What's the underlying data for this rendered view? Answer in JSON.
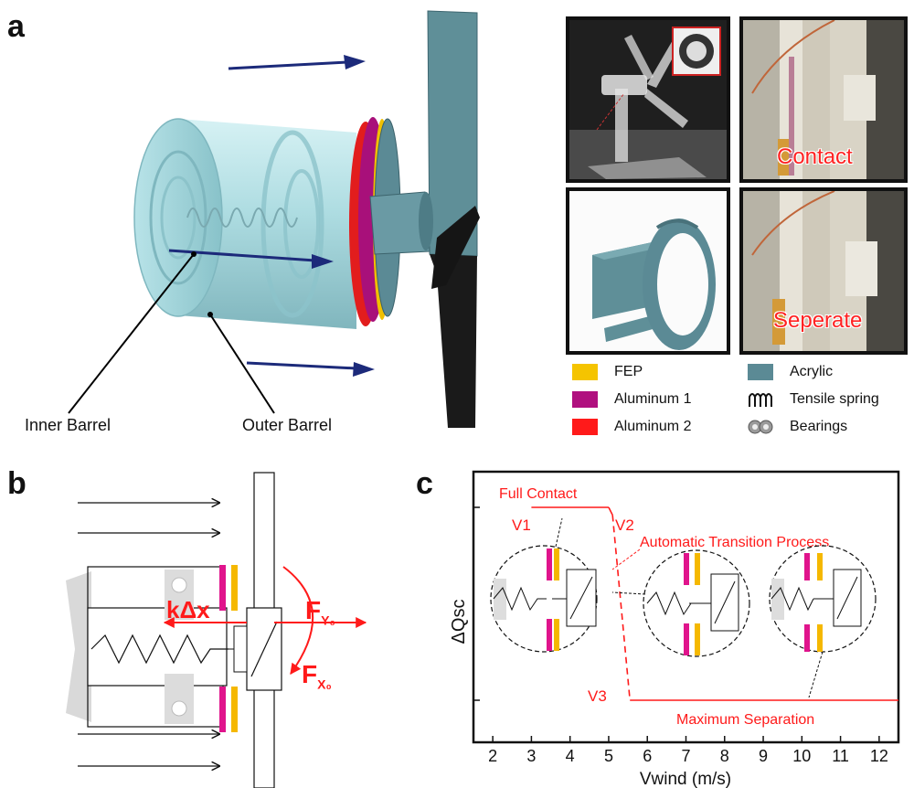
{
  "panel_a": {
    "label": "a",
    "inner_barrel_label": "Inner Barrel",
    "outer_barrel_label": "Outer Barrel",
    "photo_labels": {
      "contact": "Contact",
      "separate": "Seperate"
    },
    "legend": [
      {
        "label": "FEP",
        "color": "#f5c400",
        "icon": "swatch"
      },
      {
        "label": "Aluminum 1",
        "color": "#b0107f",
        "icon": "swatch"
      },
      {
        "label": "Aluminum 2",
        "color": "#ff1a1a",
        "icon": "swatch"
      },
      {
        "label": "Acrylic",
        "color": "#5b8a95",
        "icon": "swatch"
      },
      {
        "label": "Tensile spring",
        "color": "#111111",
        "icon": "spring-icon"
      },
      {
        "label": "Bearings",
        "color": "#888888",
        "icon": "bearing-icon"
      }
    ]
  },
  "panel_b": {
    "label": "b",
    "spring_force_label": "kΔx",
    "force_y_label": "F",
    "force_y_sub": "Y₀",
    "force_x_label": "F",
    "force_x_sub": "X₀",
    "colors": {
      "aluminum": "#e0148c",
      "fep": "#f5b800",
      "force": "#ff1a1a"
    }
  },
  "panel_c": {
    "label": "c",
    "annotations": {
      "full_contact": "Full Contact",
      "v1": "V1",
      "v2": "V2",
      "v3": "V3",
      "transition": "Automatic Transition Process",
      "max_separation": "Maximum Separation"
    },
    "chart_data": {
      "type": "line",
      "xlabel": "Vwind (m/s)",
      "ylabel": "ΔQsc",
      "xlim": [
        1.5,
        12.5
      ],
      "x_ticks": [
        2,
        3,
        4,
        5,
        6,
        7,
        8,
        9,
        10,
        11,
        12
      ],
      "ylim": [
        0,
        1
      ],
      "series": [
        {
          "style": "solid",
          "color": "#ff1a1a",
          "x": [
            3.0,
            5.0
          ],
          "y": [
            1.0,
            1.0
          ]
        },
        {
          "style": "solid",
          "color": "#ff1a1a",
          "x": [
            5.0,
            5.1
          ],
          "y": [
            1.0,
            0.96
          ]
        },
        {
          "style": "dashed",
          "color": "#ff1a1a",
          "x": [
            5.1,
            5.55
          ],
          "y": [
            0.96,
            0.0
          ]
        },
        {
          "style": "solid",
          "color": "#ff1a1a",
          "x": [
            5.55,
            12.5
          ],
          "y": [
            0.0,
            0.0
          ]
        }
      ]
    }
  }
}
